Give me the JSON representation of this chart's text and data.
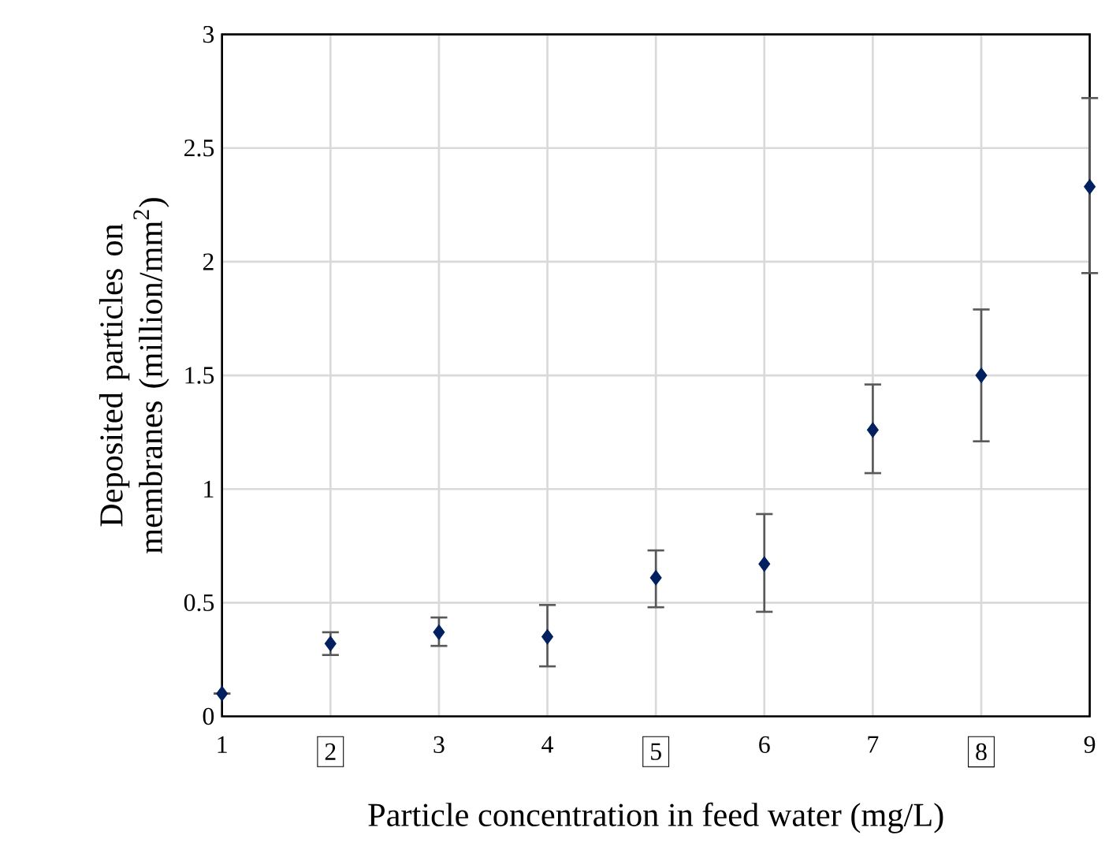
{
  "chart_data": {
    "type": "scatter",
    "xlabel": "Particle concentration in feed water (mg/L)",
    "ylabel": "Deposited particles on membranes (million/mm$^{2}$)",
    "x": [
      1,
      2,
      3,
      4,
      5,
      6,
      7,
      8,
      9
    ],
    "values": [
      0.1,
      0.32,
      0.37,
      0.35,
      0.61,
      0.67,
      1.26,
      1.5,
      2.33
    ],
    "errors": [
      null,
      [
        0.27,
        0.37
      ],
      [
        0.31,
        0.435
      ],
      [
        0.22,
        0.49
      ],
      [
        0.48,
        0.73
      ],
      [
        0.46,
        0.89
      ],
      [
        1.07,
        1.46
      ],
      [
        1.21,
        1.79
      ],
      [
        1.95,
        2.72
      ]
    ],
    "color": "#002060",
    "marker": "diamond",
    "grid": true,
    "xlim": [
      1,
      9
    ],
    "xticks": [
      1,
      2,
      3,
      4,
      5,
      6,
      7,
      8,
      9
    ],
    "ylim": [
      0,
      3
    ],
    "yticks": [
      0,
      0.5,
      1,
      1.5,
      2,
      2.5,
      3
    ]
  }
}
